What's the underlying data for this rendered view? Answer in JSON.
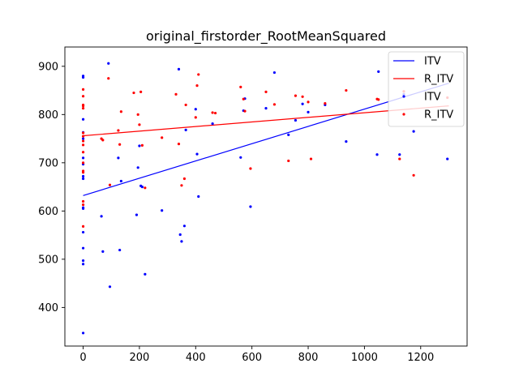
{
  "chart_data": {
    "type": "scatter",
    "title": "original_firstorder_RootMeanSquared",
    "xlabel": "",
    "ylabel": "",
    "xlim": [
      -65,
      1365
    ],
    "ylim": [
      320,
      940
    ],
    "xticks": [
      0,
      200,
      400,
      600,
      800,
      1000,
      1200
    ],
    "yticks": [
      400,
      500,
      600,
      700,
      800,
      900
    ],
    "grid": false,
    "legend_placement": "top-right",
    "series": [
      {
        "name": "ITV",
        "kind": "line",
        "color": "#0000ff",
        "x": [
          0,
          1300
        ],
        "y": [
          632,
          865
        ]
      },
      {
        "name": "R_ITV",
        "kind": "line",
        "color": "#ff0000",
        "x": [
          0,
          1300
        ],
        "y": [
          756,
          818
        ]
      },
      {
        "name": "ITV",
        "kind": "scatter",
        "color": "#0000ff",
        "x": [
          0,
          0,
          0,
          0,
          0,
          0,
          0,
          0,
          0,
          0,
          0,
          0,
          0,
          0,
          0,
          0,
          65,
          70,
          90,
          95,
          125,
          130,
          135,
          190,
          195,
          200,
          205,
          210,
          220,
          280,
          340,
          345,
          350,
          360,
          365,
          400,
          405,
          410,
          460,
          560,
          570,
          575,
          595,
          650,
          680,
          730,
          755,
          780,
          800,
          860,
          935,
          1045,
          1050,
          1125,
          1140,
          1175,
          1295
        ],
        "y": [
          347,
          490,
          497,
          523,
          556,
          605,
          607,
          667,
          672,
          697,
          710,
          750,
          763,
          790,
          877,
          880,
          589,
          516,
          906,
          443,
          710,
          519,
          662,
          592,
          690,
          735,
          652,
          650,
          469,
          601,
          894,
          551,
          537,
          569,
          768,
          811,
          718,
          630,
          781,
          711,
          808,
          833,
          609,
          813,
          887,
          758,
          788,
          822,
          805,
          820,
          744,
          717,
          889,
          717,
          842,
          765,
          708
        ]
      },
      {
        "name": "R_ITV",
        "kind": "scatter",
        "color": "#ff0000",
        "x": [
          0,
          0,
          0,
          0,
          0,
          0,
          0,
          0,
          0,
          0,
          0,
          0,
          0,
          0,
          0,
          0,
          65,
          70,
          90,
          95,
          125,
          130,
          135,
          180,
          195,
          200,
          205,
          210,
          220,
          280,
          330,
          340,
          350,
          360,
          365,
          400,
          405,
          410,
          460,
          470,
          560,
          570,
          575,
          595,
          650,
          680,
          730,
          755,
          780,
          800,
          810,
          860,
          935,
          1045,
          1050,
          1125,
          1140,
          1175,
          1295
        ],
        "y": [
          568,
          613,
          620,
          680,
          683,
          700,
          722,
          737,
          745,
          755,
          762,
          813,
          818,
          820,
          838,
          852,
          750,
          747,
          875,
          654,
          767,
          738,
          806,
          845,
          800,
          779,
          847,
          736,
          648,
          752,
          842,
          739,
          653,
          667,
          820,
          794,
          860,
          883,
          804,
          803,
          857,
          832,
          807,
          688,
          847,
          821,
          704,
          839,
          837,
          826,
          708,
          823,
          850,
          832,
          831,
          708,
          848,
          674,
          835
        ]
      }
    ]
  }
}
